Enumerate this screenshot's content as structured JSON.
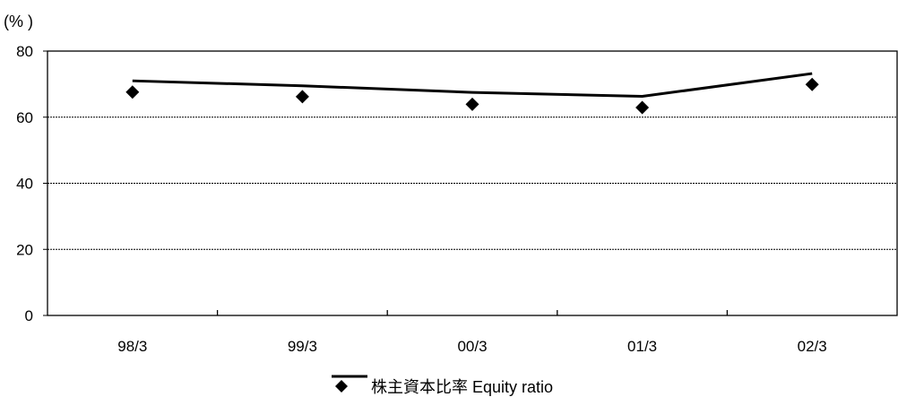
{
  "chart_data": {
    "type": "line",
    "title": "",
    "xlabel": "",
    "ylabel": "(% )",
    "categories": [
      "98/3",
      "99/3",
      "00/3",
      "01/3",
      "02/3"
    ],
    "ylim": [
      0,
      80
    ],
    "yticks": [
      0,
      20,
      40,
      60,
      80
    ],
    "grid": true,
    "legend_position": "bottom",
    "series": [
      {
        "name": "株主資本比率 Equity ratio",
        "style": "line",
        "color": "#000000",
        "values": [
          71,
          69.5,
          67.5,
          66.3,
          73.2
        ]
      },
      {
        "name": "",
        "style": "diamond-markers",
        "color": "#000000",
        "values": [
          67.6,
          66.2,
          63.9,
          62.9,
          69.9
        ]
      }
    ]
  }
}
